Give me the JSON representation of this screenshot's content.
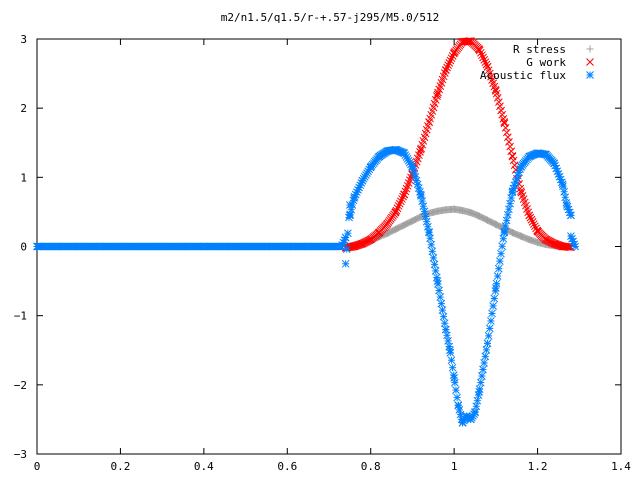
{
  "chart_data": {
    "type": "scatter",
    "title": "m2/n1.5/q1.5/r-+.57-j295/M5.0/512",
    "xlabel": "",
    "ylabel": "",
    "xlim": [
      0,
      1.4
    ],
    "ylim": [
      -3,
      3
    ],
    "xticks": [
      "0",
      "0.2",
      "0.4",
      "0.6",
      "0.8",
      "1",
      "1.2",
      "1.4"
    ],
    "yticks": [
      "3",
      "2",
      "1",
      "0",
      "−1",
      "−2",
      "−3"
    ],
    "grid": false,
    "legend_position": "top-right",
    "colors": {
      "r_stress": "#a0a0a0",
      "g_work": "#ff0000",
      "acoustic_flux": "#0080ff",
      "axis": "#000000"
    },
    "series": [
      {
        "name": "R stress",
        "marker": "plus",
        "color": "#a0a0a0",
        "points": [
          [
            0.74,
            0.0
          ],
          [
            0.76,
            0.02
          ],
          [
            0.78,
            0.05
          ],
          [
            0.8,
            0.09
          ],
          [
            0.82,
            0.14
          ],
          [
            0.84,
            0.19
          ],
          [
            0.86,
            0.25
          ],
          [
            0.88,
            0.31
          ],
          [
            0.9,
            0.37
          ],
          [
            0.92,
            0.43
          ],
          [
            0.94,
            0.48
          ],
          [
            0.96,
            0.51
          ],
          [
            0.98,
            0.53
          ],
          [
            1.0,
            0.54
          ],
          [
            1.02,
            0.52
          ],
          [
            1.04,
            0.49
          ],
          [
            1.06,
            0.44
          ],
          [
            1.08,
            0.38
          ],
          [
            1.1,
            0.32
          ],
          [
            1.12,
            0.26
          ],
          [
            1.14,
            0.2
          ],
          [
            1.16,
            0.15
          ],
          [
            1.18,
            0.1
          ],
          [
            1.2,
            0.06
          ],
          [
            1.22,
            0.03
          ],
          [
            1.24,
            0.01
          ],
          [
            1.26,
            0.0
          ],
          [
            1.28,
            0.0
          ]
        ]
      },
      {
        "name": "G work",
        "marker": "cross",
        "color": "#ff0000",
        "points": [
          [
            0.74,
            -0.02
          ],
          [
            0.76,
            0.0
          ],
          [
            0.78,
            0.04
          ],
          [
            0.8,
            0.1
          ],
          [
            0.82,
            0.2
          ],
          [
            0.84,
            0.33
          ],
          [
            0.86,
            0.5
          ],
          [
            0.88,
            0.75
          ],
          [
            0.9,
            1.05
          ],
          [
            0.92,
            1.4
          ],
          [
            0.94,
            1.8
          ],
          [
            0.96,
            2.2
          ],
          [
            0.98,
            2.55
          ],
          [
            1.0,
            2.8
          ],
          [
            1.02,
            2.96
          ],
          [
            1.04,
            2.97
          ],
          [
            1.06,
            2.85
          ],
          [
            1.08,
            2.6
          ],
          [
            1.1,
            2.25
          ],
          [
            1.12,
            1.8
          ],
          [
            1.14,
            1.3
          ],
          [
            1.16,
            0.8
          ],
          [
            1.18,
            0.45
          ],
          [
            1.2,
            0.22
          ],
          [
            1.22,
            0.1
          ],
          [
            1.24,
            0.04
          ],
          [
            1.26,
            0.0
          ],
          [
            1.28,
            -0.01
          ]
        ]
      },
      {
        "name": "Acoustic flux",
        "marker": "star",
        "color": "#0080ff",
        "points": [
          [
            0.0,
            0.0
          ],
          [
            0.05,
            0.0
          ],
          [
            0.1,
            0.0
          ],
          [
            0.15,
            0.0
          ],
          [
            0.2,
            0.0
          ],
          [
            0.25,
            0.0
          ],
          [
            0.3,
            0.0
          ],
          [
            0.35,
            0.0
          ],
          [
            0.4,
            0.0
          ],
          [
            0.45,
            0.0
          ],
          [
            0.5,
            0.0
          ],
          [
            0.55,
            0.0
          ],
          [
            0.6,
            0.0
          ],
          [
            0.65,
            0.0
          ],
          [
            0.7,
            0.0
          ],
          [
            0.73,
            0.0
          ],
          [
            0.74,
            0.13
          ],
          [
            0.74,
            -0.25
          ],
          [
            0.75,
            0.6
          ],
          [
            0.75,
            0.45
          ],
          [
            0.76,
            0.7
          ],
          [
            0.78,
            0.95
          ],
          [
            0.8,
            1.15
          ],
          [
            0.82,
            1.3
          ],
          [
            0.84,
            1.38
          ],
          [
            0.86,
            1.4
          ],
          [
            0.88,
            1.35
          ],
          [
            0.9,
            1.15
          ],
          [
            0.92,
            0.75
          ],
          [
            0.94,
            0.2
          ],
          [
            0.96,
            -0.5
          ],
          [
            0.98,
            -1.2
          ],
          [
            0.99,
            -1.5
          ],
          [
            1.0,
            -1.9
          ],
          [
            1.01,
            -2.3
          ],
          [
            1.02,
            -2.55
          ],
          [
            1.03,
            -2.45
          ],
          [
            1.04,
            -2.5
          ],
          [
            1.05,
            -2.4
          ],
          [
            1.06,
            -2.1
          ],
          [
            1.08,
            -1.4
          ],
          [
            1.1,
            -0.6
          ],
          [
            1.12,
            0.2
          ],
          [
            1.14,
            0.8
          ],
          [
            1.16,
            1.15
          ],
          [
            1.18,
            1.3
          ],
          [
            1.2,
            1.35
          ],
          [
            1.22,
            1.33
          ],
          [
            1.24,
            1.2
          ],
          [
            1.26,
            0.9
          ],
          [
            1.27,
            0.6
          ],
          [
            1.28,
            0.45
          ],
          [
            1.28,
            0.15
          ],
          [
            1.29,
            0.0
          ]
        ]
      }
    ]
  }
}
